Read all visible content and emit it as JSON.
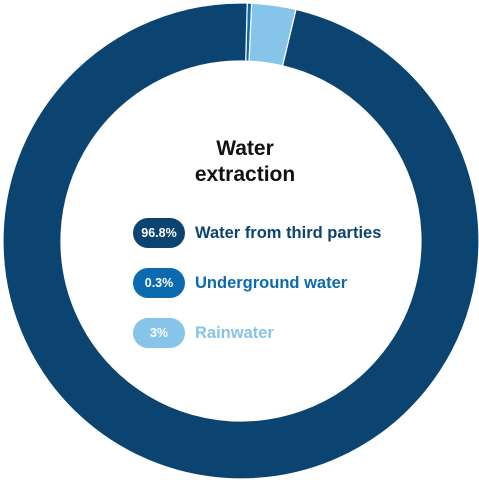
{
  "chart_data": {
    "type": "pie",
    "variant": "donut",
    "title": "Water\nextraction",
    "series": [
      {
        "name": "Water from third parties",
        "value": 96.8,
        "label": "96.8%",
        "color": "#0b4470"
      },
      {
        "name": "Underground water",
        "value": 0.3,
        "label": "0.3%",
        "color": "#0b6ab0"
      },
      {
        "name": "Rainwater",
        "value": 3,
        "label": "3%",
        "color": "#86c4e9"
      }
    ]
  },
  "title_lines": [
    "Water",
    "extraction"
  ],
  "legend": [
    {
      "badge": "96.8%",
      "label": "Water from third parties",
      "badge_color": "#0b4470",
      "text_color": "#0b4470"
    },
    {
      "badge": "0.3%",
      "label": "Underground water",
      "badge_color": "#0b6ab0",
      "text_color": "#0b6ab0"
    },
    {
      "badge": "3%",
      "label": "Rainwater",
      "badge_color": "#86c4e9",
      "text_color": "#86c4e9"
    }
  ]
}
